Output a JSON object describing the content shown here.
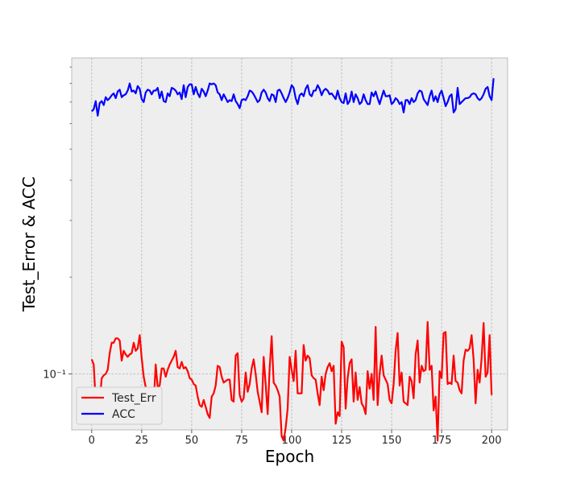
{
  "chart_data": {
    "type": "line",
    "title": "",
    "xlabel": "Epoch",
    "ylabel": "Test_Error & ACC",
    "xlim": [
      -10,
      208
    ],
    "ylim": [
      0.067,
      0.96
    ],
    "yscale": "log",
    "grid": true,
    "legend_position": "bottom-left",
    "background_color": "#eeeeee",
    "xticks": [
      0,
      25,
      50,
      75,
      100,
      125,
      150,
      175,
      200
    ],
    "xtick_labels": [
      "0",
      "25",
      "50",
      "75",
      "100",
      "125",
      "150",
      "175",
      "200"
    ],
    "yticks_major": [
      0.1
    ],
    "ytick_major_labels": [
      "10⁻¹"
    ],
    "yticks_minor": [
      0.2,
      0.3,
      0.4,
      0.5,
      0.6,
      0.7,
      0.8,
      0.9
    ],
    "series": [
      {
        "name": "Test_Err",
        "color": "#ff0000",
        "x_start": 0,
        "x_step": 1,
        "values": [
          0.111,
          0.107,
          0.082,
          0.08,
          0.082,
          0.097,
          0.099,
          0.1,
          0.103,
          0.116,
          0.125,
          0.125,
          0.129,
          0.129,
          0.127,
          0.11,
          0.118,
          0.115,
          0.113,
          0.115,
          0.116,
          0.125,
          0.118,
          0.12,
          0.132,
          0.112,
          0.098,
          0.091,
          0.083,
          0.087,
          0.088,
          0.081,
          0.107,
          0.091,
          0.092,
          0.104,
          0.104,
          0.098,
          0.103,
          0.107,
          0.11,
          0.113,
          0.118,
          0.105,
          0.104,
          0.109,
          0.104,
          0.105,
          0.102,
          0.097,
          0.096,
          0.093,
          0.092,
          0.085,
          0.08,
          0.079,
          0.083,
          0.079,
          0.075,
          0.073,
          0.085,
          0.087,
          0.092,
          0.106,
          0.105,
          0.098,
          0.094,
          0.095,
          0.096,
          0.096,
          0.083,
          0.082,
          0.114,
          0.116,
          0.086,
          0.082,
          0.084,
          0.101,
          0.088,
          0.093,
          0.104,
          0.111,
          0.1,
          0.088,
          0.082,
          0.076,
          0.113,
          0.093,
          0.075,
          0.104,
          0.131,
          0.094,
          0.092,
          0.089,
          0.085,
          0.064,
          0.062,
          0.068,
          0.078,
          0.113,
          0.103,
          0.095,
          0.118,
          0.087,
          0.087,
          0.087,
          0.123,
          0.11,
          0.114,
          0.112,
          0.099,
          0.097,
          0.096,
          0.087,
          0.08,
          0.098,
          0.089,
          0.1,
          0.105,
          0.108,
          0.102,
          0.106,
          0.07,
          0.076,
          0.074,
          0.126,
          0.121,
          0.078,
          0.097,
          0.108,
          0.111,
          0.082,
          0.101,
          0.083,
          0.091,
          0.081,
          0.079,
          0.075,
          0.102,
          0.09,
          0.1,
          0.083,
          0.14,
          0.08,
          0.1,
          0.114,
          0.099,
          0.096,
          0.093,
          0.083,
          0.081,
          0.093,
          0.118,
          0.134,
          0.092,
          0.101,
          0.082,
          0.081,
          0.08,
          0.098,
          0.095,
          0.084,
          0.115,
          0.127,
          0.094,
          0.106,
          0.102,
          0.103,
          0.145,
          0.103,
          0.106,
          0.077,
          0.085,
          0.062,
          0.102,
          0.097,
          0.134,
          0.135,
          0.093,
          0.094,
          0.093,
          0.114,
          0.095,
          0.094,
          0.089,
          0.087,
          0.11,
          0.119,
          0.118,
          0.12,
          0.132,
          0.111,
          0.081,
          0.103,
          0.094,
          0.112,
          0.144,
          0.098,
          0.101,
          0.132,
          0.086
        ]
      },
      {
        "name": "ACC",
        "color": "#0000ff",
        "x_start": 0,
        "x_step": 1,
        "values": [
          0.655,
          0.665,
          0.705,
          0.635,
          0.695,
          0.705,
          0.685,
          0.725,
          0.71,
          0.72,
          0.735,
          0.745,
          0.72,
          0.755,
          0.765,
          0.725,
          0.735,
          0.74,
          0.76,
          0.8,
          0.755,
          0.76,
          0.745,
          0.785,
          0.77,
          0.715,
          0.7,
          0.75,
          0.765,
          0.76,
          0.74,
          0.76,
          0.76,
          0.775,
          0.72,
          0.755,
          0.705,
          0.7,
          0.745,
          0.73,
          0.775,
          0.77,
          0.76,
          0.74,
          0.75,
          0.715,
          0.79,
          0.725,
          0.78,
          0.795,
          0.795,
          0.74,
          0.78,
          0.745,
          0.725,
          0.77,
          0.755,
          0.73,
          0.76,
          0.8,
          0.795,
          0.8,
          0.79,
          0.75,
          0.74,
          0.71,
          0.74,
          0.72,
          0.7,
          0.71,
          0.705,
          0.74,
          0.705,
          0.69,
          0.67,
          0.71,
          0.715,
          0.71,
          0.73,
          0.76,
          0.755,
          0.74,
          0.72,
          0.7,
          0.71,
          0.75,
          0.765,
          0.75,
          0.72,
          0.705,
          0.74,
          0.735,
          0.7,
          0.76,
          0.765,
          0.745,
          0.72,
          0.7,
          0.72,
          0.75,
          0.79,
          0.775,
          0.72,
          0.69,
          0.735,
          0.745,
          0.73,
          0.77,
          0.79,
          0.74,
          0.73,
          0.76,
          0.76,
          0.79,
          0.77,
          0.735,
          0.76,
          0.77,
          0.76,
          0.74,
          0.745,
          0.73,
          0.715,
          0.76,
          0.72,
          0.7,
          0.695,
          0.745,
          0.69,
          0.705,
          0.755,
          0.7,
          0.74,
          0.72,
          0.69,
          0.7,
          0.74,
          0.71,
          0.69,
          0.69,
          0.75,
          0.73,
          0.755,
          0.72,
          0.69,
          0.725,
          0.76,
          0.73,
          0.73,
          0.735,
          0.69,
          0.7,
          0.72,
          0.71,
          0.69,
          0.7,
          0.65,
          0.71,
          0.71,
          0.69,
          0.72,
          0.7,
          0.71,
          0.745,
          0.76,
          0.755,
          0.715,
          0.7,
          0.685,
          0.73,
          0.76,
          0.705,
          0.73,
          0.7,
          0.74,
          0.76,
          0.72,
          0.68,
          0.7,
          0.73,
          0.74,
          0.65,
          0.665,
          0.775,
          0.69,
          0.7,
          0.71,
          0.72,
          0.72,
          0.725,
          0.74,
          0.745,
          0.74,
          0.72,
          0.71,
          0.72,
          0.74,
          0.77,
          0.78,
          0.73,
          0.71,
          0.83
        ]
      }
    ]
  }
}
